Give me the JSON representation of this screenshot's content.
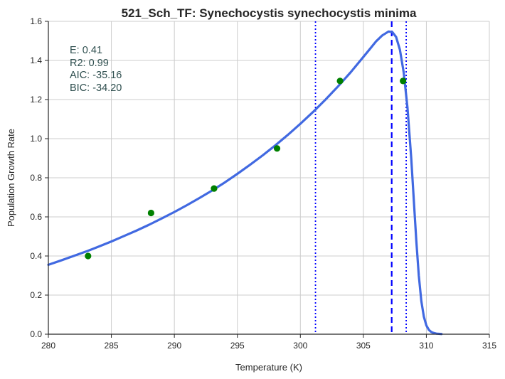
{
  "chart_data": {
    "type": "line",
    "title": "521_Sch_TF: Synechocystis synechocystis minima",
    "xlabel": "Temperature (K)",
    "ylabel": "Population Growth Rate",
    "xlim": [
      280,
      315
    ],
    "ylim": [
      0.0,
      1.6
    ],
    "xticks": [
      280,
      285,
      290,
      295,
      300,
      305,
      310,
      315
    ],
    "xtick_labels": [
      "280",
      "285",
      "290",
      "295",
      "300",
      "305",
      "310",
      "315"
    ],
    "yticks": [
      0.0,
      0.2,
      0.4,
      0.6,
      0.8,
      1.0,
      1.2,
      1.4,
      1.6
    ],
    "ytick_labels": [
      "0.0",
      "0.2",
      "0.4",
      "0.6",
      "0.8",
      "1.0",
      "1.2",
      "1.4",
      "1.6"
    ],
    "grid": true,
    "colors": {
      "fit_line": "#4169e1",
      "points": "#008000",
      "vertical_lines": "#0000ff",
      "stats_text": "#2f4f4f",
      "grid": "#cccccc"
    },
    "observed_points": {
      "x": [
        283.15,
        288.15,
        293.15,
        298.15,
        303.15,
        308.15
      ],
      "y": [
        0.4,
        0.62,
        0.745,
        0.95,
        1.295,
        1.295
      ]
    },
    "fit_curve": {
      "x": [
        280.0,
        281.0,
        282.0,
        283.0,
        284.0,
        285.0,
        286.0,
        287.0,
        288.0,
        289.0,
        290.0,
        291.0,
        292.0,
        293.0,
        294.0,
        295.0,
        296.0,
        297.0,
        298.0,
        299.0,
        300.0,
        301.0,
        302.0,
        303.0,
        304.0,
        305.0,
        305.5,
        306.0,
        306.5,
        307.0,
        307.3,
        307.6,
        307.9,
        308.2,
        308.5,
        308.8,
        309.0,
        309.2,
        309.4,
        309.6,
        309.8,
        310.0,
        310.2,
        310.4,
        310.6,
        310.8,
        311.0,
        311.2
      ],
      "y": [
        0.355,
        0.377,
        0.4,
        0.423,
        0.448,
        0.474,
        0.502,
        0.53,
        0.56,
        0.592,
        0.625,
        0.66,
        0.697,
        0.735,
        0.776,
        0.82,
        0.866,
        0.914,
        0.965,
        1.019,
        1.076,
        1.136,
        1.2,
        1.268,
        1.34,
        1.418,
        1.457,
        1.497,
        1.528,
        1.548,
        1.545,
        1.52,
        1.455,
        1.34,
        1.16,
        0.9,
        0.69,
        0.48,
        0.3,
        0.17,
        0.09,
        0.045,
        0.022,
        0.011,
        0.006,
        0.003,
        0.002,
        0.001
      ]
    },
    "vertical_lines": [
      {
        "x": 301.2,
        "style": "dotted"
      },
      {
        "x": 307.25,
        "style": "dashed"
      },
      {
        "x": 308.4,
        "style": "dotted"
      }
    ],
    "stats": [
      "E:  0.41",
      "R2:  0.99",
      "AIC: -35.16",
      "BIC: -34.20"
    ]
  }
}
